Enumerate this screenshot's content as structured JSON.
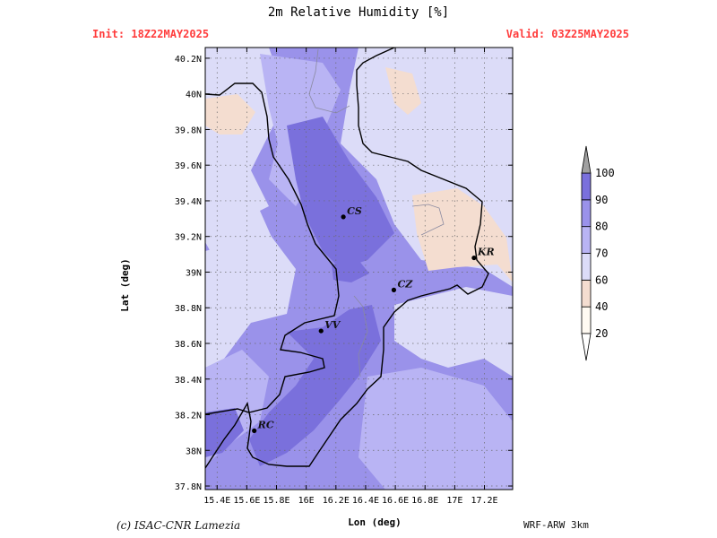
{
  "header": {
    "title": "2m Relative Humidity [%]",
    "init": "Init: 18Z22MAY2025",
    "valid": "Valid: 03Z25MAY2025"
  },
  "axes": {
    "xlabel": "Lon (deg)",
    "ylabel": "Lat (deg)",
    "x_ticks": [
      "15.4E",
      "15.6E",
      "15.8E",
      "16E",
      "16.2E",
      "16.4E",
      "16.6E",
      "16.8E",
      "17E",
      "17.2E"
    ],
    "y_ticks": [
      "40.2N",
      "40N",
      "39.8N",
      "39.6N",
      "39.4N",
      "39.2N",
      "39N",
      "38.8N",
      "38.6N",
      "38.4N",
      "38.2N",
      "38N",
      "37.8N"
    ],
    "lon_range": [
      15.32,
      17.39
    ],
    "lat_range": [
      37.78,
      40.26
    ]
  },
  "colorbar": {
    "levels": [
      "20",
      "40",
      "60",
      "70",
      "80",
      "90",
      "100"
    ],
    "colors": [
      "#fffaf2",
      "#f4ddd0",
      "#dcdcf8",
      "#b9b4f4",
      "#9a92ea",
      "#7a70dc",
      "#a0a0a0"
    ]
  },
  "cities": [
    {
      "name": "CS",
      "lon": 16.25,
      "lat": 39.31
    },
    {
      "name": "CZ",
      "lon": 16.59,
      "lat": 38.9
    },
    {
      "name": "KR",
      "lon": 17.13,
      "lat": 39.08
    },
    {
      "name": "VV",
      "lon": 16.1,
      "lat": 38.67
    },
    {
      "name": "RC",
      "lon": 15.65,
      "lat": 38.11
    }
  ],
  "footer": {
    "credit": "(c) ISAC-CNR Lamezia",
    "model": "WRF-ARW 3km"
  }
}
